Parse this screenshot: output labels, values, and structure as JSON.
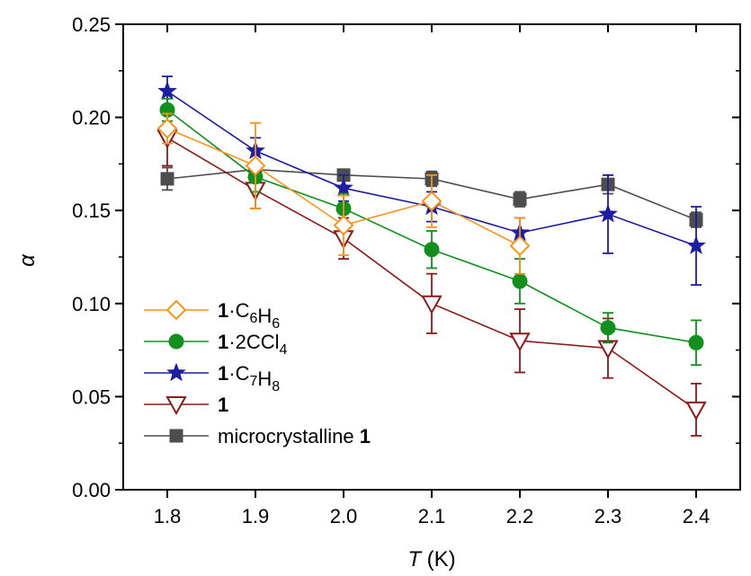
{
  "chart_data": {
    "type": "line",
    "xlabel": {
      "italic": "T",
      "rest": " (K)"
    },
    "ylabel": "α",
    "xlim": [
      1.75,
      2.45
    ],
    "ylim": [
      0.0,
      0.25
    ],
    "x_ticks": [
      "1.8",
      "1.9",
      "2.0",
      "2.1",
      "2.2",
      "2.3",
      "2.4"
    ],
    "y_ticks": [
      "0.00",
      "0.05",
      "0.10",
      "0.15",
      "0.20",
      "0.25"
    ],
    "legend_position": "lower-left",
    "series": [
      {
        "key": "c6h6",
        "legend": {
          "bold": "1",
          "sep": "·",
          "parts": [
            [
              "C",
              ""
            ],
            [
              "6",
              "sub"
            ],
            [
              "H",
              ""
            ],
            [
              "6",
              "sub"
            ]
          ]
        },
        "color": "#F7941D",
        "marker": "diamond-open",
        "x": [
          1.8,
          1.9,
          2.0,
          2.1,
          2.2
        ],
        "y": [
          0.194,
          0.174,
          0.142,
          0.155,
          0.131
        ],
        "err": [
          0.008,
          0.023,
          0.016,
          0.014,
          0.015
        ]
      },
      {
        "key": "ccl4",
        "legend": {
          "bold": "1",
          "sep": "·",
          "parts": [
            [
              "2CCl",
              ""
            ],
            [
              "4",
              "sub"
            ]
          ]
        },
        "color": "#138F1F",
        "marker": "circle-filled",
        "x": [
          1.8,
          1.9,
          2.0,
          2.1,
          2.2,
          2.3,
          2.4
        ],
        "y": [
          0.204,
          0.168,
          0.151,
          0.129,
          0.112,
          0.087,
          0.079
        ],
        "err": [
          0.006,
          0.008,
          0.008,
          0.01,
          0.012,
          0.008,
          0.012
        ]
      },
      {
        "key": "c7h8",
        "legend": {
          "bold": "1",
          "sep": "·",
          "parts": [
            [
              "C",
              ""
            ],
            [
              "7",
              "sub"
            ],
            [
              "H",
              ""
            ],
            [
              "8",
              "sub"
            ]
          ]
        },
        "color": "#1E1EA0",
        "marker": "star-filled",
        "x": [
          1.8,
          1.9,
          2.0,
          2.1,
          2.2,
          2.3,
          2.4
        ],
        "y": [
          0.214,
          0.182,
          0.162,
          0.152,
          0.138,
          0.148,
          0.131
        ],
        "err": [
          0.008,
          0.007,
          0.007,
          0.008,
          0.008,
          0.021,
          0.021
        ]
      },
      {
        "key": "pure",
        "legend": {
          "bold": "1",
          "sep": "",
          "parts": []
        },
        "color": "#8B1A1A",
        "marker": "triangle-down-open",
        "x": [
          1.8,
          1.9,
          2.0,
          2.1,
          2.2,
          2.3,
          2.4
        ],
        "y": [
          0.189,
          0.161,
          0.135,
          0.1,
          0.08,
          0.076,
          0.043
        ],
        "err": [
          0.015,
          0.01,
          0.011,
          0.016,
          0.017,
          0.016,
          0.014
        ]
      },
      {
        "key": "micro",
        "legend": {
          "pre": "microcrystalline ",
          "bold": "1",
          "sep": "",
          "parts": []
        },
        "color": "#4D4D4D",
        "marker": "square-filled",
        "x": [
          1.8,
          1.9,
          2.0,
          2.1,
          2.2,
          2.3,
          2.4
        ],
        "y": [
          0.167,
          0.172,
          0.169,
          0.167,
          0.156,
          0.164,
          0.145
        ],
        "err": [
          0.006,
          0.004,
          0.003,
          0.004,
          0.004,
          0.005,
          0.004
        ]
      }
    ]
  }
}
